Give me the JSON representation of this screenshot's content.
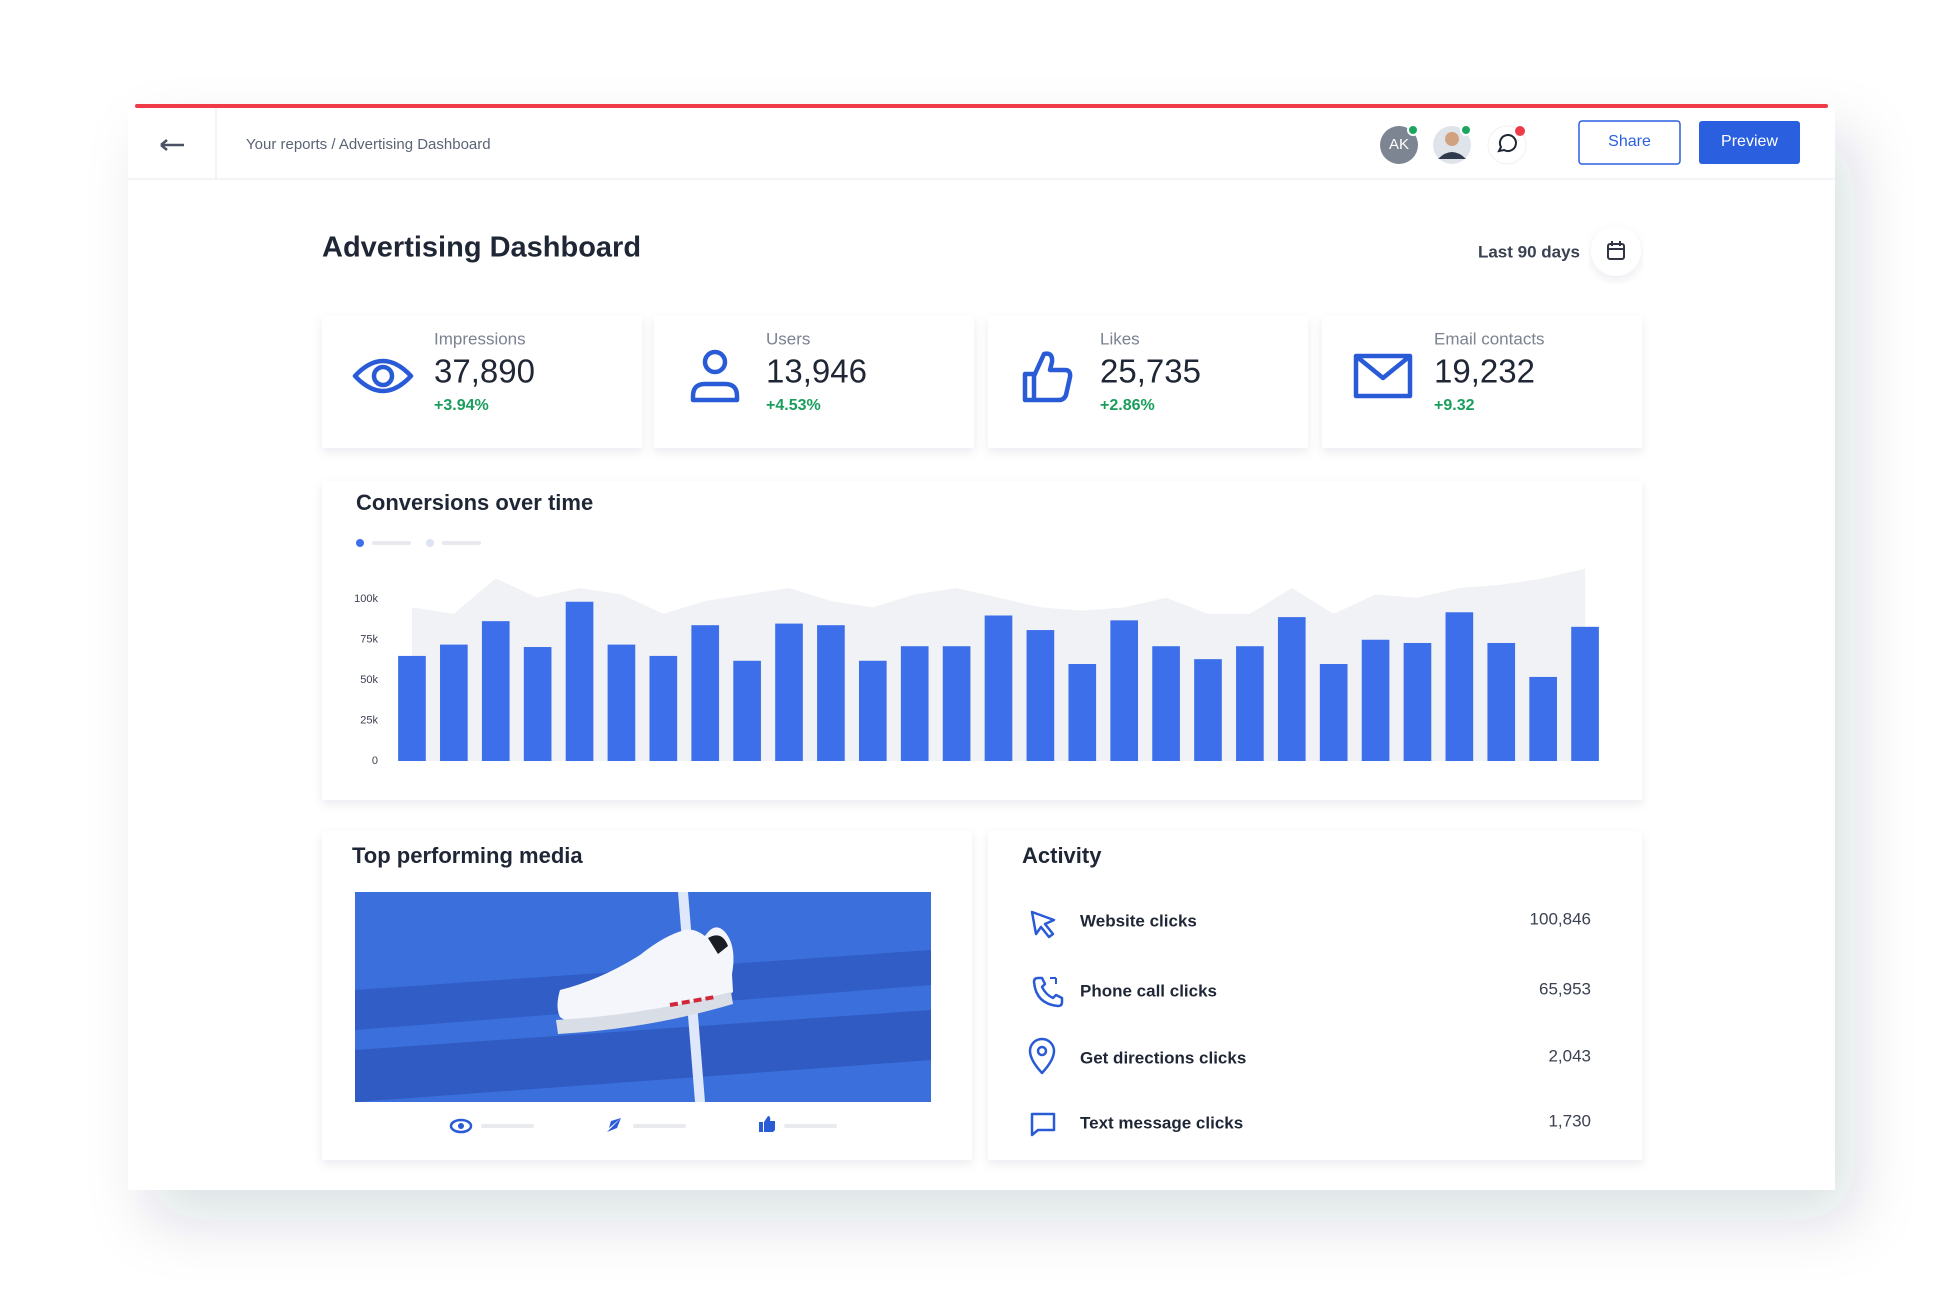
{
  "header": {
    "breadcrumb": "Your reports / Advertising Dashboard",
    "avatar": "AK",
    "share": "Share",
    "preview": "Preview"
  },
  "dashboard": {
    "title": "Advertising Dashboard",
    "period": "Last 90 days"
  },
  "kpis": [
    {
      "label": "Impressions",
      "value": "37,890",
      "change": "+3.94%"
    },
    {
      "label": "Users",
      "value": "13,946",
      "change": "+4.53%"
    },
    {
      "label": "Likes",
      "value": "25,735",
      "change": "+2.86%"
    },
    {
      "label": "Email contacts",
      "value": "19,232",
      "change": "+9.32"
    }
  ],
  "chart_data": {
    "type": "bar",
    "title": "Conversions over time",
    "series": [
      {
        "type": "bar",
        "color": "#3c6fe9",
        "values": [
          65000,
          72000,
          86500,
          70500,
          98500,
          72000,
          65000,
          84000,
          62000,
          85000,
          84000,
          62000,
          71000,
          71000,
          90000,
          81000,
          60000,
          87000,
          71000,
          63000,
          71000,
          89000,
          60000,
          75000,
          73000,
          92000,
          73000,
          52000,
          83000
        ]
      },
      {
        "type": "area",
        "color": "#f1f2f5",
        "values": [
          95000,
          91000,
          113000,
          101000,
          107000,
          103000,
          91000,
          99000,
          103000,
          107000,
          99000,
          95000,
          103000,
          107000,
          101000,
          95000,
          93000,
          95000,
          101000,
          91000,
          91000,
          107000,
          91000,
          103000,
          101000,
          107000,
          109000,
          113000,
          119000
        ]
      }
    ],
    "ylim": [
      0,
      120000
    ],
    "yticks": [
      0,
      {
        "value": 25000,
        "label": "25k"
      },
      {
        "value": 50000,
        "label": "50k"
      },
      {
        "value": 75000,
        "label": "75k"
      },
      {
        "value": 100000,
        "label": "100k"
      }
    ],
    "grid": false
  },
  "media": {
    "title": "Top performing media"
  },
  "activity": {
    "title": "Activity",
    "rows": [
      {
        "label": "Website clicks",
        "value": "100,846"
      },
      {
        "label": "Phone call clicks",
        "value": "65,953"
      },
      {
        "label": "Get directions clicks",
        "value": "2,043"
      },
      {
        "label": "Text message clicks",
        "value": "1,730"
      }
    ]
  }
}
